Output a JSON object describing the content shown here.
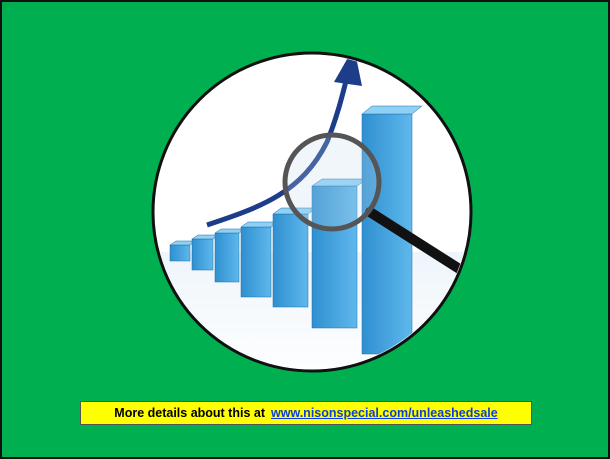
{
  "caption": {
    "text": "More details about this at",
    "link": "www.nisonspecial.com/unleashedsale"
  }
}
